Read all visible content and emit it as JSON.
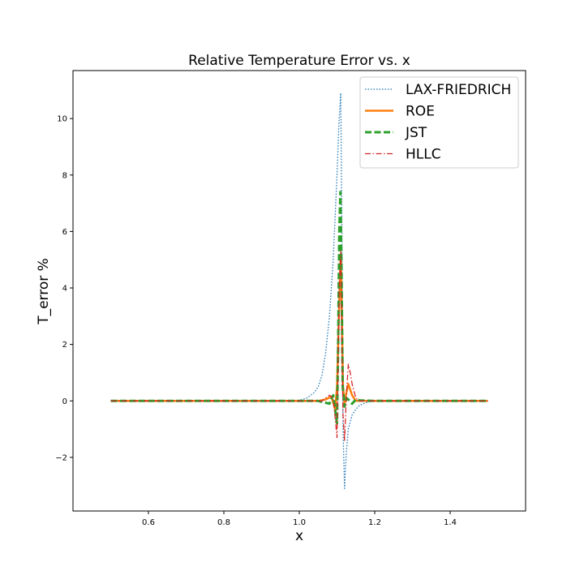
{
  "chart_data": {
    "type": "line",
    "title": "Relative Temperature Error vs. x",
    "xlabel": "x",
    "ylabel": "T_error %",
    "xlim": [
      0.4,
      1.6
    ],
    "ylim": [
      -3.9,
      11.7
    ],
    "xticks": [
      0.6,
      0.8,
      1.0,
      1.2,
      1.4
    ],
    "xtick_labels": [
      "0.6",
      "0.8",
      "1.0",
      "1.2",
      "1.4"
    ],
    "yticks": [
      -2,
      0,
      2,
      4,
      6,
      8,
      10
    ],
    "ytick_labels": [
      "−2",
      "0",
      "2",
      "4",
      "6",
      "8",
      "10"
    ],
    "grid": false,
    "legend_position": "top-right",
    "series": [
      {
        "name": "LAX-FRIEDRICH",
        "color": "#1f77b4",
        "style": "dotted",
        "x": [
          0.5,
          0.9,
          1.0,
          1.02,
          1.04,
          1.05,
          1.06,
          1.07,
          1.08,
          1.09,
          1.1,
          1.105,
          1.11,
          1.113,
          1.116,
          1.12,
          1.122,
          1.125,
          1.13,
          1.14,
          1.15,
          1.16,
          1.18,
          1.2,
          1.3,
          1.5
        ],
        "y": [
          0.0,
          0.0,
          0.02,
          0.1,
          0.3,
          0.5,
          0.9,
          1.7,
          3.0,
          5.0,
          8.0,
          9.8,
          10.9,
          6.0,
          -1.0,
          -3.1,
          -2.5,
          -1.8,
          -1.0,
          -0.5,
          -0.3,
          -0.15,
          -0.05,
          0.0,
          0.0,
          0.0
        ]
      },
      {
        "name": "ROE",
        "color": "#ff7f0e",
        "style": "solid",
        "x": [
          0.5,
          1.05,
          1.07,
          1.085,
          1.095,
          1.1,
          1.105,
          1.108,
          1.11,
          1.113,
          1.116,
          1.12,
          1.125,
          1.13,
          1.14,
          1.15,
          1.2,
          1.5
        ],
        "y": [
          0.0,
          0.0,
          0.05,
          0.15,
          -0.3,
          0.5,
          3.0,
          4.5,
          5.2,
          3.0,
          0.5,
          -0.1,
          0.3,
          0.6,
          0.2,
          0.0,
          0.0,
          0.0
        ]
      },
      {
        "name": "JST",
        "color": "#2ca02c",
        "style": "dashed",
        "x": [
          0.5,
          1.05,
          1.08,
          1.09,
          1.1,
          1.103,
          1.106,
          1.109,
          1.112,
          1.115,
          1.12,
          1.125,
          1.13,
          1.14,
          1.15,
          1.16,
          1.2,
          1.5
        ],
        "y": [
          0.0,
          0.0,
          -0.1,
          0.2,
          -0.8,
          2.0,
          6.0,
          7.4,
          4.5,
          0.5,
          -0.2,
          0.1,
          0.05,
          -0.1,
          0.05,
          0.02,
          0.0,
          0.0
        ]
      },
      {
        "name": "HLLC",
        "color": "#d62728",
        "style": "dashdot",
        "x": [
          0.5,
          1.06,
          1.08,
          1.09,
          1.095,
          1.1,
          1.103,
          1.106,
          1.11,
          1.113,
          1.116,
          1.12,
          1.125,
          1.13,
          1.135,
          1.14,
          1.15,
          1.16,
          1.2,
          1.5
        ],
        "y": [
          0.0,
          0.0,
          0.2,
          0.1,
          -0.6,
          -1.3,
          1.5,
          4.0,
          5.3,
          2.0,
          -0.5,
          -1.4,
          0.2,
          1.3,
          1.0,
          0.6,
          0.1,
          0.0,
          0.0,
          0.0
        ]
      }
    ]
  }
}
